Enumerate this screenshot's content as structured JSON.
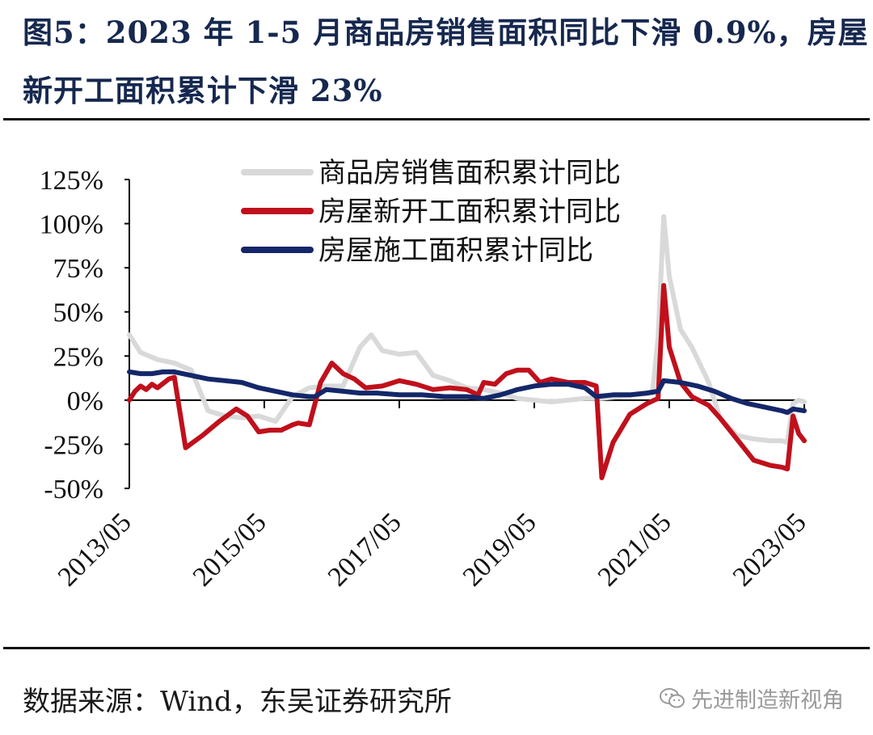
{
  "header": {
    "title_line1": "图5：2023 年 1-5 月商品房销售面积同比下滑 0.9%，房屋",
    "title_line2": "新开工面积累计下滑 23%"
  },
  "footer": {
    "source": "数据来源：Wind，东吴证券研究所",
    "watermark": "先进制造新视角",
    "watermark_icon": "wechat-icon"
  },
  "chart_data": {
    "type": "line",
    "title": "",
    "xlabel": "",
    "ylabel": "",
    "ylim": [
      -50,
      125
    ],
    "yticks": [
      -50,
      -25,
      0,
      25,
      50,
      75,
      100,
      125
    ],
    "ytick_labels": [
      "-50%",
      "-25%",
      "0%",
      "25%",
      "50%",
      "75%",
      "100%",
      "125%"
    ],
    "xlim": [
      2013.333,
      2023.333
    ],
    "xticks": [
      2013.333,
      2015.333,
      2017.333,
      2019.333,
      2021.333,
      2023.333
    ],
    "xtick_labels": [
      "2013/05",
      "2015/05",
      "2017/05",
      "2019/05",
      "2021/05",
      "2023/05"
    ],
    "grid": false,
    "legend": "top",
    "series": [
      {
        "name": "商品房销售面积累计同比",
        "color": "#d9d9d9",
        "points": [
          [
            2013.333,
            37
          ],
          [
            2013.5,
            27
          ],
          [
            2013.75,
            23
          ],
          [
            2014.0,
            21
          ],
          [
            2014.25,
            17
          ],
          [
            2014.5,
            -6
          ],
          [
            2014.75,
            -9
          ],
          [
            2015.0,
            -10
          ],
          [
            2015.25,
            -9
          ],
          [
            2015.5,
            -12
          ],
          [
            2015.75,
            2
          ],
          [
            2016.0,
            7
          ],
          [
            2016.25,
            8
          ],
          [
            2016.5,
            8
          ],
          [
            2016.75,
            30
          ],
          [
            2016.917,
            37
          ],
          [
            2017.083,
            28
          ],
          [
            2017.333,
            26
          ],
          [
            2017.583,
            27
          ],
          [
            2017.833,
            14
          ],
          [
            2018.083,
            11
          ],
          [
            2018.333,
            7
          ],
          [
            2018.583,
            6
          ],
          [
            2018.833,
            4
          ],
          [
            2019.083,
            1
          ],
          [
            2019.333,
            0
          ],
          [
            2019.583,
            -1
          ],
          [
            2019.833,
            0
          ],
          [
            2020.083,
            1
          ],
          [
            2020.333,
            1
          ],
          [
            2020.583,
            2
          ],
          [
            2020.833,
            3
          ],
          [
            2021.083,
            4
          ],
          [
            2021.167,
            35
          ],
          [
            2021.25,
            104
          ],
          [
            2021.333,
            70
          ],
          [
            2021.5,
            40
          ],
          [
            2021.667,
            30
          ],
          [
            2021.917,
            10
          ],
          [
            2022.083,
            -10
          ],
          [
            2022.333,
            -20
          ],
          [
            2022.583,
            -22
          ],
          [
            2022.833,
            -23
          ],
          [
            2023.0,
            -23
          ],
          [
            2023.083,
            -24
          ],
          [
            2023.167,
            -2
          ],
          [
            2023.25,
            0
          ],
          [
            2023.333,
            -1
          ]
        ]
      },
      {
        "name": "房屋新开工面积累计同比",
        "color": "#c0101c",
        "points": [
          [
            2013.333,
            0
          ],
          [
            2013.417,
            5
          ],
          [
            2013.5,
            8
          ],
          [
            2013.583,
            6
          ],
          [
            2013.667,
            9
          ],
          [
            2013.75,
            7
          ],
          [
            2013.917,
            12
          ],
          [
            2014.0,
            13
          ],
          [
            2014.167,
            -27
          ],
          [
            2014.417,
            -20
          ],
          [
            2014.667,
            -12
          ],
          [
            2014.917,
            -5
          ],
          [
            2015.083,
            -9
          ],
          [
            2015.25,
            -18
          ],
          [
            2015.417,
            -17
          ],
          [
            2015.583,
            -17
          ],
          [
            2015.75,
            -14
          ],
          [
            2015.833,
            -13
          ],
          [
            2016.0,
            -14
          ],
          [
            2016.167,
            10
          ],
          [
            2016.333,
            21
          ],
          [
            2016.5,
            15
          ],
          [
            2016.667,
            12
          ],
          [
            2016.833,
            7
          ],
          [
            2017.083,
            8
          ],
          [
            2017.333,
            11
          ],
          [
            2017.583,
            9
          ],
          [
            2017.833,
            6
          ],
          [
            2018.083,
            7
          ],
          [
            2018.333,
            6
          ],
          [
            2018.5,
            3
          ],
          [
            2018.583,
            10
          ],
          [
            2018.75,
            9
          ],
          [
            2018.917,
            15
          ],
          [
            2019.083,
            17
          ],
          [
            2019.25,
            17
          ],
          [
            2019.417,
            10
          ],
          [
            2019.583,
            12
          ],
          [
            2019.833,
            10
          ],
          [
            2020.083,
            10
          ],
          [
            2020.25,
            8
          ],
          [
            2020.333,
            -44
          ],
          [
            2020.5,
            -24
          ],
          [
            2020.75,
            -8
          ],
          [
            2021.0,
            -2
          ],
          [
            2021.167,
            1
          ],
          [
            2021.25,
            65
          ],
          [
            2021.333,
            30
          ],
          [
            2021.5,
            10
          ],
          [
            2021.667,
            2
          ],
          [
            2021.917,
            -3
          ],
          [
            2022.083,
            -10
          ],
          [
            2022.333,
            -22
          ],
          [
            2022.583,
            -34
          ],
          [
            2022.833,
            -37
          ],
          [
            2023.0,
            -38
          ],
          [
            2023.083,
            -39
          ],
          [
            2023.167,
            -9
          ],
          [
            2023.25,
            -19
          ],
          [
            2023.333,
            -23
          ]
        ]
      },
      {
        "name": "房屋施工面积累计同比",
        "color": "#142769",
        "points": [
          [
            2013.333,
            16
          ],
          [
            2013.5,
            15
          ],
          [
            2013.667,
            15
          ],
          [
            2013.833,
            16
          ],
          [
            2014.0,
            16
          ],
          [
            2014.25,
            14
          ],
          [
            2014.5,
            12
          ],
          [
            2014.75,
            11
          ],
          [
            2015.0,
            10
          ],
          [
            2015.25,
            7
          ],
          [
            2015.5,
            5
          ],
          [
            2015.75,
            3
          ],
          [
            2016.0,
            2
          ],
          [
            2016.083,
            2
          ],
          [
            2016.25,
            6
          ],
          [
            2016.5,
            5
          ],
          [
            2016.75,
            4
          ],
          [
            2017.0,
            4
          ],
          [
            2017.333,
            3
          ],
          [
            2017.667,
            3
          ],
          [
            2018.0,
            2
          ],
          [
            2018.333,
            2
          ],
          [
            2018.583,
            1
          ],
          [
            2018.833,
            3
          ],
          [
            2019.083,
            6
          ],
          [
            2019.333,
            8
          ],
          [
            2019.583,
            9
          ],
          [
            2019.833,
            9
          ],
          [
            2020.083,
            7
          ],
          [
            2020.25,
            2
          ],
          [
            2020.5,
            3
          ],
          [
            2020.75,
            3
          ],
          [
            2021.0,
            4
          ],
          [
            2021.167,
            5
          ],
          [
            2021.25,
            11
          ],
          [
            2021.5,
            10
          ],
          [
            2021.75,
            8
          ],
          [
            2022.0,
            5
          ],
          [
            2022.25,
            1
          ],
          [
            2022.5,
            -2
          ],
          [
            2022.75,
            -4
          ],
          [
            2023.0,
            -6
          ],
          [
            2023.083,
            -7
          ],
          [
            2023.167,
            -5
          ],
          [
            2023.333,
            -6
          ]
        ]
      }
    ]
  }
}
